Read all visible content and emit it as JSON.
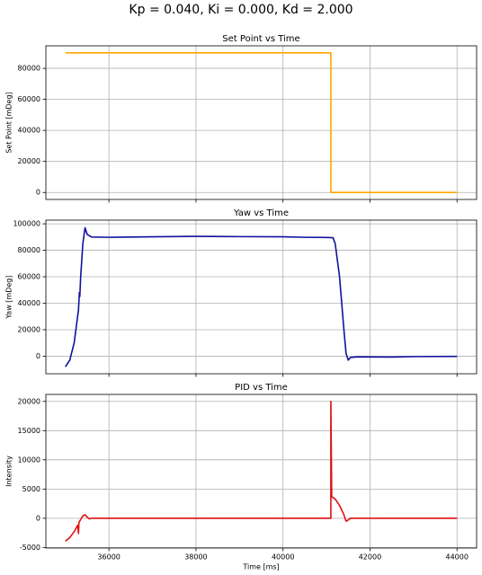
{
  "title": "Kp = 0.040, Ki = 0.000, Kd = 2.000",
  "chart_data": [
    {
      "type": "line",
      "title": "Set Point vs Time",
      "ylabel": "Set Point [mDeg]",
      "xlim": [
        34550,
        44450
      ],
      "xticks": [
        36000,
        38000,
        40000,
        42000,
        44000
      ],
      "ylim": [
        -4500,
        94500
      ],
      "yticks": [
        0,
        20000,
        40000,
        60000,
        80000
      ],
      "grid": true,
      "series": [
        {
          "color": "#ffa500",
          "x": [
            35000,
            41100,
            41100,
            44000
          ],
          "values": [
            90000,
            90000,
            0,
            0
          ]
        }
      ]
    },
    {
      "type": "line",
      "title": "Yaw vs Time",
      "ylabel": "Yaw [mDeg]",
      "xlim": [
        34550,
        44450
      ],
      "xticks": [
        36000,
        38000,
        40000,
        42000,
        44000
      ],
      "ylim": [
        -13275,
        102775
      ],
      "yticks": [
        0,
        20000,
        40000,
        60000,
        80000,
        100000
      ],
      "grid": true,
      "series": [
        {
          "color": "#1010a0",
          "x": [
            35000,
            35100,
            35200,
            35300,
            35320,
            35330,
            35350,
            35400,
            35450,
            35500,
            35600,
            36000,
            37000,
            38000,
            39000,
            40000,
            40500,
            41000,
            41150,
            41200,
            41300,
            41400,
            41450,
            41500,
            41550,
            41700,
            42500,
            43000,
            44000
          ],
          "values": [
            -8000,
            -3000,
            10000,
            35000,
            48000,
            45000,
            60000,
            85000,
            97000,
            92000,
            90000,
            89800,
            90200,
            90500,
            90300,
            90200,
            89800,
            89700,
            89500,
            85000,
            60000,
            20000,
            2000,
            -3000,
            -1000,
            -500,
            -700,
            -300,
            -200
          ]
        }
      ]
    },
    {
      "type": "line",
      "title": "PID vs Time",
      "ylabel": "Intensity",
      "xlabel": "Time [ms]",
      "xlim": [
        34550,
        44450
      ],
      "xticks": [
        36000,
        38000,
        40000,
        42000,
        44000
      ],
      "ylim": [
        -5095,
        21195
      ],
      "yticks": [
        -5000,
        0,
        5000,
        10000,
        15000,
        20000
      ],
      "grid": true,
      "series": [
        {
          "color": "#e01010",
          "x": [
            35000,
            35100,
            35200,
            35280,
            35300,
            35310,
            35400,
            35450,
            35500,
            35550,
            35600,
            41100,
            41100,
            41120,
            41200,
            41300,
            41400,
            41450,
            41500,
            41550,
            44000
          ],
          "values": [
            -3900,
            -3300,
            -2300,
            -1200,
            -2600,
            -700,
            400,
            600,
            200,
            -100,
            0,
            0,
            20000,
            3700,
            3300,
            2200,
            600,
            -500,
            -300,
            0,
            0
          ]
        }
      ]
    }
  ]
}
